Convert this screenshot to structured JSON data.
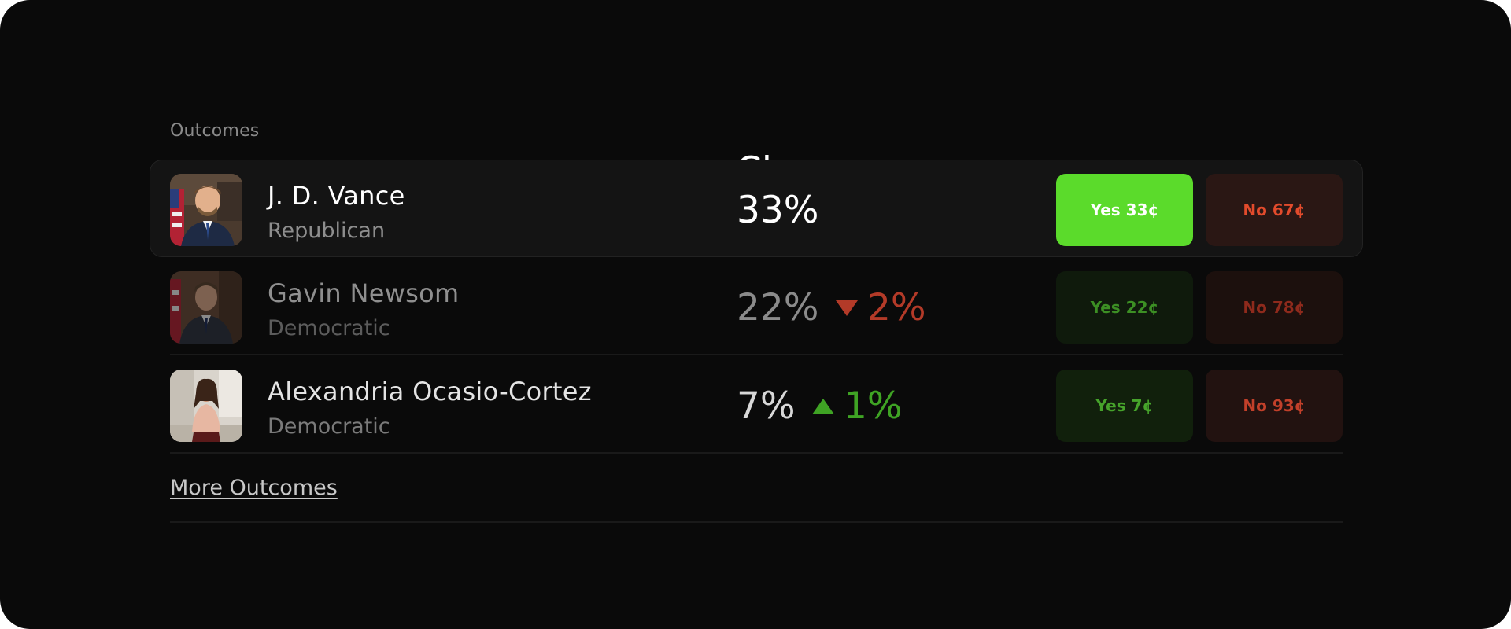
{
  "headers": {
    "outcomes": "Outcomes",
    "chance": "Chance"
  },
  "outcomes": [
    {
      "name": "J. D. Vance",
      "party": "Republican",
      "chance": "33%",
      "delta": null,
      "yes_label": "Yes 33¢",
      "no_label": "No 67¢"
    },
    {
      "name": "Gavin Newsom",
      "party": "Democratic",
      "chance": "22%",
      "delta": {
        "direction": "down",
        "value": "2%"
      },
      "yes_label": "Yes 22¢",
      "no_label": "No 78¢"
    },
    {
      "name": "Alexandria Ocasio-Cortez",
      "party": "Democratic",
      "chance": "7%",
      "delta": {
        "direction": "up",
        "value": "1%"
      },
      "yes_label": "Yes 7¢",
      "no_label": "No 93¢"
    }
  ],
  "more_link": "More Outcomes",
  "colors": {
    "background": "#0a0a0a",
    "yes_active": "#5bdb2b",
    "no_active": "#e24b2c",
    "delta_up": "#3fa324",
    "delta_down": "#b33a28"
  }
}
